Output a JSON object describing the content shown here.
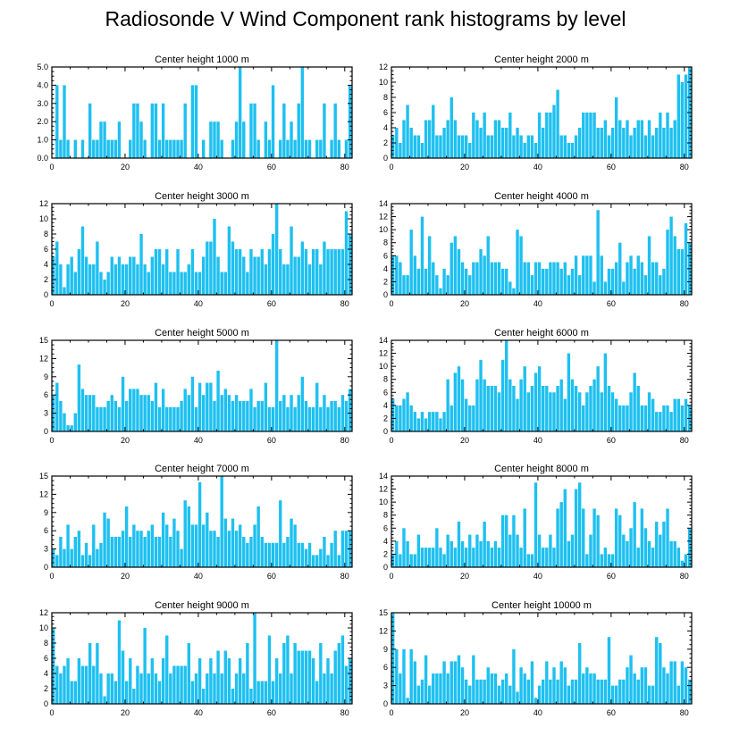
{
  "figure_title": "Radiosonde V Wind Component rank histograms by level",
  "bar_color": "#1ec0f0",
  "chart_data": [
    {
      "type": "bar",
      "title": "Center height 1000 m",
      "xlim": [
        0,
        82
      ],
      "ylim": [
        0,
        5
      ],
      "xticks": [
        0,
        20,
        40,
        60,
        80
      ],
      "yticks": [
        0,
        1,
        2,
        3,
        4,
        5
      ],
      "ytick_labels": [
        "0.0",
        "1.0",
        "2.0",
        "3.0",
        "4.0",
        "5.0"
      ],
      "values": [
        0,
        4,
        1,
        4,
        1,
        0,
        1,
        0,
        1,
        0,
        3,
        1,
        1,
        2,
        2,
        1,
        1,
        1,
        2,
        0,
        0,
        1,
        3,
        3,
        2,
        1,
        0,
        3,
        3,
        1,
        3,
        1,
        1,
        1,
        1,
        1,
        3,
        0,
        4,
        4,
        0,
        1,
        0,
        2,
        2,
        2,
        1,
        0,
        0,
        1,
        2,
        5,
        2,
        0,
        3,
        3,
        1,
        0,
        2,
        1,
        4,
        0,
        1,
        3,
        1,
        2,
        1,
        3,
        5,
        1,
        1,
        0,
        1,
        1,
        3,
        0,
        1,
        3,
        1,
        0,
        1,
        4
      ]
    },
    {
      "type": "bar",
      "title": "Center height 2000 m",
      "xlim": [
        0,
        82
      ],
      "ylim": [
        0,
        12
      ],
      "xticks": [
        0,
        20,
        40,
        60,
        80
      ],
      "yticks": [
        0,
        2,
        4,
        6,
        8,
        10,
        12
      ],
      "ytick_labels": [
        "0",
        "2",
        "4",
        "6",
        "8",
        "10",
        "12"
      ],
      "values": [
        3,
        4,
        2,
        5,
        7,
        4,
        3,
        3,
        2,
        5,
        5,
        7,
        3,
        3,
        4,
        5,
        8,
        5,
        3,
        3,
        3,
        2,
        6,
        5,
        4,
        6,
        3,
        3,
        5,
        5,
        4,
        4,
        6,
        3,
        4,
        3,
        2,
        3,
        3,
        2,
        6,
        4,
        6,
        6,
        7,
        9,
        3,
        3,
        2,
        2,
        3,
        4,
        6,
        6,
        6,
        6,
        4,
        4,
        5,
        3,
        4,
        8,
        5,
        4,
        5,
        3,
        4,
        5,
        5,
        3,
        5,
        3,
        4,
        6,
        4,
        6,
        4,
        5,
        11,
        10,
        11,
        12
      ]
    },
    {
      "type": "bar",
      "title": "Center height 3000 m",
      "xlim": [
        0,
        82
      ],
      "ylim": [
        0,
        12
      ],
      "xticks": [
        0,
        20,
        40,
        60,
        80
      ],
      "yticks": [
        0,
        2,
        4,
        6,
        8,
        10,
        12
      ],
      "ytick_labels": [
        "0",
        "2",
        "4",
        "6",
        "8",
        "10",
        "12"
      ],
      "values": [
        5,
        7,
        4,
        1,
        4,
        5,
        3,
        6,
        9,
        5,
        4,
        4,
        7,
        3,
        2,
        3,
        5,
        4,
        5,
        4,
        4,
        5,
        5,
        4,
        8,
        4,
        3,
        5,
        6,
        6,
        4,
        6,
        3,
        3,
        6,
        3,
        3,
        4,
        6,
        3,
        3,
        5,
        7,
        7,
        10,
        5,
        3,
        3,
        9,
        7,
        6,
        6,
        5,
        3,
        6,
        5,
        5,
        6,
        4,
        6,
        8,
        12,
        6,
        4,
        4,
        9,
        5,
        5,
        7,
        6,
        4,
        6,
        6,
        4,
        7,
        6,
        6,
        6,
        6,
        6,
        11,
        8
      ]
    },
    {
      "type": "bar",
      "title": "Center height 4000 m",
      "xlim": [
        0,
        82
      ],
      "ylim": [
        0,
        14
      ],
      "xticks": [
        0,
        20,
        40,
        60,
        80
      ],
      "yticks": [
        0,
        2,
        4,
        6,
        8,
        10,
        12,
        14
      ],
      "ytick_labels": [
        "0",
        "2",
        "4",
        "6",
        "8",
        "10",
        "12",
        "14"
      ],
      "values": [
        6,
        6,
        5,
        3,
        3,
        10,
        6,
        4,
        12,
        4,
        9,
        5,
        3,
        1,
        4,
        3,
        8,
        9,
        7,
        5,
        4,
        3,
        5,
        5,
        7,
        6,
        9,
        5,
        5,
        5,
        4,
        4,
        2,
        1,
        10,
        9,
        5,
        5,
        3,
        5,
        5,
        4,
        4,
        5,
        5,
        5,
        4,
        5,
        3,
        4,
        6,
        3,
        6,
        6,
        6,
        2,
        13,
        6,
        2,
        4,
        4,
        5,
        8,
        2,
        5,
        6,
        4,
        6,
        5,
        3,
        9,
        5,
        5,
        3,
        4,
        10,
        12,
        9,
        7,
        7,
        11,
        8
      ]
    },
    {
      "type": "bar",
      "title": "Center height 5000 m",
      "xlim": [
        0,
        82
      ],
      "ylim": [
        0,
        15
      ],
      "xticks": [
        0,
        20,
        40,
        60,
        80
      ],
      "yticks": [
        0,
        3,
        6,
        9,
        12,
        15
      ],
      "ytick_labels": [
        "0",
        "3",
        "6",
        "9",
        "12",
        "15"
      ],
      "values": [
        6,
        8,
        5,
        3,
        1,
        1,
        3,
        11,
        7,
        6,
        6,
        6,
        4,
        4,
        4,
        5,
        6,
        5,
        4,
        9,
        5,
        7,
        7,
        7,
        6,
        6,
        6,
        5,
        8,
        4,
        7,
        4,
        4,
        4,
        4,
        5,
        7,
        6,
        9,
        4,
        8,
        6,
        8,
        8,
        5,
        10,
        6,
        7,
        6,
        5,
        6,
        5,
        5,
        5,
        7,
        4,
        5,
        5,
        8,
        4,
        4,
        15,
        5,
        6,
        4,
        6,
        4,
        6,
        9,
        5,
        4,
        4,
        8,
        4,
        6,
        4,
        5,
        5,
        4,
        6,
        5,
        7
      ]
    },
    {
      "type": "bar",
      "title": "Center height 6000 m",
      "xlim": [
        0,
        82
      ],
      "ylim": [
        0,
        14
      ],
      "xticks": [
        0,
        20,
        40,
        60,
        80
      ],
      "yticks": [
        0,
        2,
        4,
        6,
        8,
        10,
        12,
        14
      ],
      "ytick_labels": [
        "0",
        "2",
        "4",
        "6",
        "8",
        "10",
        "12",
        "14"
      ],
      "values": [
        5,
        4,
        4,
        5,
        6,
        4,
        3,
        2,
        3,
        2,
        3,
        3,
        3,
        2,
        3,
        8,
        4,
        9,
        10,
        8,
        5,
        4,
        4,
        8,
        11,
        8,
        7,
        7,
        7,
        6,
        11,
        14,
        8,
        7,
        5,
        8,
        10,
        6,
        7,
        9,
        10,
        7,
        7,
        6,
        6,
        7,
        8,
        5,
        12,
        8,
        7,
        6,
        4,
        6,
        7,
        8,
        10,
        6,
        12,
        7,
        6,
        5,
        4,
        4,
        4,
        6,
        9,
        7,
        4,
        4,
        6,
        5,
        3,
        3,
        4,
        4,
        3,
        5,
        5,
        4,
        5,
        4
      ]
    },
    {
      "type": "bar",
      "title": "Center height 7000 m",
      "xlim": [
        0,
        82
      ],
      "ylim": [
        0,
        15
      ],
      "xticks": [
        0,
        20,
        40,
        60,
        80
      ],
      "yticks": [
        0,
        3,
        6,
        9,
        12,
        15
      ],
      "ytick_labels": [
        "0",
        "3",
        "6",
        "9",
        "12",
        "15"
      ],
      "values": [
        3,
        2,
        5,
        3,
        7,
        3,
        5,
        6,
        2,
        4,
        2,
        7,
        3,
        4,
        9,
        8,
        5,
        5,
        5,
        6,
        10,
        5,
        7,
        6,
        6,
        5,
        6,
        7,
        5,
        5,
        9,
        7,
        5,
        8,
        6,
        3,
        11,
        10,
        7,
        7,
        14,
        7,
        9,
        6,
        6,
        5,
        15,
        8,
        6,
        8,
        6,
        7,
        5,
        4,
        5,
        7,
        10,
        5,
        4,
        4,
        4,
        4,
        11,
        4,
        5,
        8,
        7,
        4,
        4,
        3,
        4,
        2,
        2,
        3,
        5,
        2,
        4,
        6,
        2,
        6,
        6,
        6
      ]
    },
    {
      "type": "bar",
      "title": "Center height 8000 m",
      "xlim": [
        0,
        82
      ],
      "ylim": [
        0,
        14
      ],
      "xticks": [
        0,
        20,
        40,
        60,
        80
      ],
      "yticks": [
        0,
        2,
        4,
        6,
        8,
        10,
        12,
        14
      ],
      "ytick_labels": [
        "0",
        "2",
        "4",
        "6",
        "8",
        "10",
        "12",
        "14"
      ],
      "values": [
        2,
        4,
        2,
        6,
        4,
        2,
        2,
        5,
        3,
        3,
        3,
        3,
        6,
        3,
        2,
        5,
        4,
        3,
        7,
        4,
        3,
        5,
        3,
        5,
        4,
        7,
        4,
        3,
        4,
        3,
        8,
        8,
        5,
        8,
        5,
        3,
        9,
        2,
        2,
        13,
        5,
        3,
        3,
        5,
        3,
        9,
        10,
        12,
        4,
        5,
        12,
        13,
        9,
        2,
        5,
        9,
        8,
        2,
        3,
        2,
        2,
        9,
        8,
        5,
        4,
        6,
        10,
        3,
        9,
        6,
        4,
        3,
        7,
        5,
        7,
        9,
        4,
        4,
        3,
        1,
        2,
        6
      ]
    },
    {
      "type": "bar",
      "title": "Center height 9000 m",
      "xlim": [
        0,
        82
      ],
      "ylim": [
        0,
        12
      ],
      "xticks": [
        0,
        20,
        40,
        60,
        80
      ],
      "yticks": [
        0,
        2,
        4,
        6,
        8,
        10,
        12
      ],
      "ytick_labels": [
        "0",
        "2",
        "4",
        "6",
        "8",
        "10",
        "12"
      ],
      "values": [
        10,
        5,
        4,
        5,
        6,
        3,
        3,
        6,
        5,
        5,
        8,
        5,
        8,
        4,
        1,
        4,
        4,
        3,
        11,
        7,
        3,
        6,
        2,
        5,
        4,
        10,
        4,
        6,
        4,
        3,
        6,
        9,
        4,
        5,
        5,
        5,
        5,
        8,
        3,
        4,
        6,
        2,
        4,
        6,
        4,
        7,
        4,
        7,
        6,
        2,
        4,
        6,
        4,
        8,
        2,
        12,
        3,
        3,
        3,
        9,
        3,
        6,
        4,
        8,
        9,
        4,
        8,
        7,
        7,
        7,
        7,
        6,
        3,
        8,
        4,
        6,
        4,
        7,
        8,
        9,
        5,
        6
      ]
    },
    {
      "type": "bar",
      "title": "Center height 10000 m",
      "xlim": [
        0,
        82
      ],
      "ylim": [
        0,
        15
      ],
      "xticks": [
        0,
        20,
        40,
        60,
        80
      ],
      "yticks": [
        0,
        3,
        6,
        9,
        12,
        15
      ],
      "ytick_labels": [
        "0",
        "3",
        "6",
        "9",
        "12",
        "15"
      ],
      "values": [
        15,
        9,
        5,
        9,
        1,
        9,
        7,
        3,
        4,
        8,
        3,
        5,
        5,
        5,
        7,
        5,
        7,
        7,
        8,
        6,
        4,
        3,
        8,
        4,
        4,
        4,
        6,
        5,
        5,
        3,
        4,
        5,
        3,
        9,
        2,
        6,
        5,
        4,
        7,
        1,
        3,
        4,
        7,
        4,
        6,
        4,
        7,
        6,
        3,
        4,
        4,
        10,
        5,
        6,
        5,
        5,
        4,
        4,
        4,
        11,
        3,
        3,
        4,
        4,
        6,
        8,
        5,
        4,
        6,
        6,
        3,
        3,
        11,
        10,
        6,
        5,
        7,
        7,
        3,
        7,
        6,
        4
      ]
    }
  ]
}
